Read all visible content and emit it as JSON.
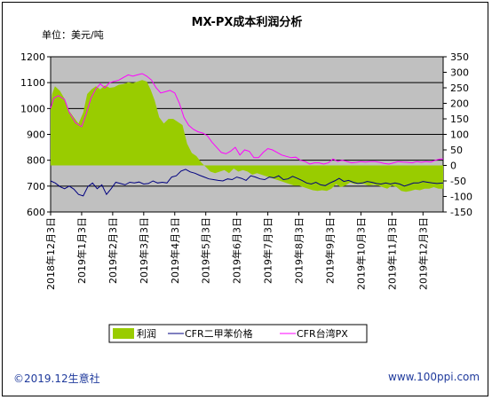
{
  "chart_data": {
    "type": "area+line",
    "title": "MX-PX成本利润分析",
    "unit_label": "单位：美元/吨",
    "y_left": {
      "min": 600,
      "max": 1200,
      "ticks": [
        600,
        700,
        800,
        900,
        1000,
        1100,
        1200
      ]
    },
    "y_right": {
      "min": -150,
      "max": 350,
      "ticks": [
        -150,
        -100,
        -50,
        0,
        50,
        100,
        150,
        200,
        250,
        300,
        350
      ]
    },
    "x_ticks": [
      "2018年12月3日",
      "2019年1月3日",
      "2019年2月3日",
      "2019年3月3日",
      "2019年4月3日",
      "2019年5月3日",
      "2019年6月3日",
      "2019年7月3日",
      "2019年8月3日",
      "2019年9月3日",
      "2019年10月3日",
      "2019年11月3日",
      "2019年12月3日"
    ],
    "series": [
      {
        "name": "利润",
        "axis": "right",
        "style": "area",
        "color": "#99cc00",
        "x": [
          0,
          0.05,
          0.14,
          0.3,
          0.45,
          0.6,
          0.9,
          1.05,
          1.18,
          1.32,
          1.46,
          1.6,
          1.75,
          1.9,
          2.05,
          2.2,
          2.35,
          2.5,
          2.65,
          2.8,
          2.95,
          3.1,
          3.22,
          3.35,
          3.5,
          3.65,
          3.8,
          3.95,
          4.1,
          4.25,
          4.4,
          4.55,
          4.7,
          4.85,
          5.0,
          5.15,
          5.3,
          5.45,
          5.6,
          5.75,
          5.9,
          6.05,
          6.2,
          6.35,
          6.5,
          6.65,
          6.8,
          6.95,
          7.1,
          7.25,
          7.4,
          7.55,
          7.7,
          7.85,
          8.0,
          8.15,
          8.3,
          8.45,
          8.6,
          8.75,
          8.9,
          9.05,
          9.2,
          9.35,
          9.5,
          9.65,
          9.8,
          9.95,
          10.1,
          10.25,
          10.4,
          10.55,
          10.7,
          10.85,
          11.0,
          11.15,
          11.3,
          11.45,
          11.6,
          11.75,
          11.9,
          12.05,
          12.2,
          12.35,
          12.5,
          12.65
        ],
        "values": [
          180,
          230,
          255,
          240,
          215,
          175,
          135,
          170,
          230,
          245,
          255,
          245,
          258,
          250,
          252,
          260,
          262,
          268,
          265,
          270,
          275,
          270,
          245,
          210,
          155,
          135,
          150,
          150,
          140,
          130,
          70,
          40,
          30,
          10,
          -5,
          -20,
          -25,
          -20,
          -15,
          -25,
          -10,
          -20,
          -15,
          -20,
          -30,
          -25,
          -30,
          -35,
          -40,
          -45,
          -50,
          -55,
          -60,
          -65,
          -65,
          -70,
          -75,
          -80,
          -82,
          -80,
          -82,
          -75,
          -60,
          -70,
          -65,
          -55,
          -60,
          -60,
          -60,
          -65,
          -62,
          -65,
          -70,
          -75,
          -65,
          -70,
          -82,
          -85,
          -82,
          -78,
          -80,
          -75,
          -75,
          -70,
          -75,
          -75
        ]
      },
      {
        "name": "CFR二甲苯价格",
        "axis": "left",
        "style": "line",
        "color": "#000080",
        "x": [
          0,
          0.15,
          0.3,
          0.45,
          0.6,
          0.75,
          0.9,
          1.05,
          1.2,
          1.35,
          1.5,
          1.65,
          1.8,
          1.95,
          2.1,
          2.25,
          2.4,
          2.55,
          2.7,
          2.85,
          3.0,
          3.15,
          3.3,
          3.45,
          3.6,
          3.75,
          3.9,
          4.05,
          4.2,
          4.35,
          4.5,
          4.65,
          4.8,
          4.95,
          5.1,
          5.25,
          5.4,
          5.55,
          5.7,
          5.85,
          6.0,
          6.15,
          6.3,
          6.45,
          6.6,
          6.75,
          6.9,
          7.05,
          7.2,
          7.35,
          7.5,
          7.65,
          7.8,
          7.95,
          8.1,
          8.25,
          8.4,
          8.55,
          8.7,
          8.85,
          9.0,
          9.15,
          9.3,
          9.45,
          9.6,
          9.75,
          9.9,
          10.05,
          10.2,
          10.35,
          10.5,
          10.65,
          10.8,
          10.95,
          11.1,
          11.25,
          11.4,
          11.55,
          11.7,
          11.85,
          12.0,
          12.15,
          12.3,
          12.45,
          12.65
        ],
        "values": [
          720,
          712,
          698,
          690,
          700,
          688,
          668,
          662,
          698,
          712,
          690,
          705,
          668,
          690,
          715,
          710,
          705,
          715,
          712,
          716,
          708,
          710,
          720,
          712,
          715,
          712,
          735,
          740,
          758,
          765,
          755,
          750,
          742,
          735,
          728,
          725,
          722,
          720,
          728,
          725,
          735,
          730,
          722,
          740,
          735,
          728,
          725,
          735,
          732,
          740,
          725,
          728,
          738,
          730,
          722,
          712,
          708,
          715,
          705,
          702,
          712,
          720,
          730,
          718,
          722,
          715,
          710,
          712,
          718,
          715,
          710,
          708,
          712,
          708,
          712,
          708,
          700,
          706,
          712,
          712,
          718,
          715,
          712,
          710,
          712
        ]
      },
      {
        "name": "CFR台湾PX",
        "axis": "left",
        "style": "line",
        "color": "#ff00ff",
        "x": [
          0,
          0.1,
          0.25,
          0.45,
          0.6,
          0.8,
          1.0,
          1.15,
          1.3,
          1.45,
          1.6,
          1.75,
          1.9,
          2.05,
          2.2,
          2.35,
          2.5,
          2.65,
          2.8,
          2.95,
          3.1,
          3.25,
          3.4,
          3.55,
          3.7,
          3.85,
          4.0,
          4.15,
          4.3,
          4.45,
          4.6,
          4.75,
          4.9,
          5.05,
          5.2,
          5.35,
          5.5,
          5.65,
          5.8,
          5.95,
          6.1,
          6.25,
          6.4,
          6.55,
          6.7,
          6.85,
          7.0,
          7.15,
          7.3,
          7.45,
          7.6,
          7.75,
          7.9,
          8.05,
          8.2,
          8.35,
          8.5,
          8.65,
          8.8,
          8.95,
          9.1,
          9.25,
          9.4,
          9.55,
          9.7,
          9.85,
          10.0,
          10.15,
          10.3,
          10.45,
          10.6,
          10.75,
          10.9,
          11.05,
          11.2,
          11.35,
          11.5,
          11.65,
          11.8,
          11.95,
          12.1,
          12.25,
          12.4,
          12.55,
          12.65
        ],
        "values": [
          1000,
          1040,
          1050,
          1035,
          985,
          945,
          930,
          980,
          1040,
          1075,
          1095,
          1080,
          1100,
          1105,
          1110,
          1120,
          1130,
          1125,
          1130,
          1135,
          1125,
          1110,
          1080,
          1060,
          1065,
          1070,
          1060,
          1020,
          965,
          935,
          920,
          910,
          905,
          895,
          870,
          850,
          830,
          825,
          835,
          850,
          820,
          840,
          835,
          810,
          810,
          830,
          845,
          840,
          830,
          820,
          815,
          810,
          812,
          800,
          795,
          785,
          790,
          790,
          785,
          790,
          805,
          795,
          800,
          795,
          790,
          792,
          795,
          793,
          795,
          795,
          792,
          788,
          785,
          790,
          795,
          793,
          792,
          790,
          795,
          792,
          795,
          793,
          800,
          805,
          805
        ]
      }
    ],
    "legend": {
      "position": "bottom"
    },
    "grid": true
  },
  "footer": {
    "copyright": "©2019.12生意社",
    "website": "www.100ppi.com"
  },
  "colors": {
    "plot_background": "#c0c0c0",
    "text": "#000000",
    "footer_text": "#1f3a9c"
  }
}
